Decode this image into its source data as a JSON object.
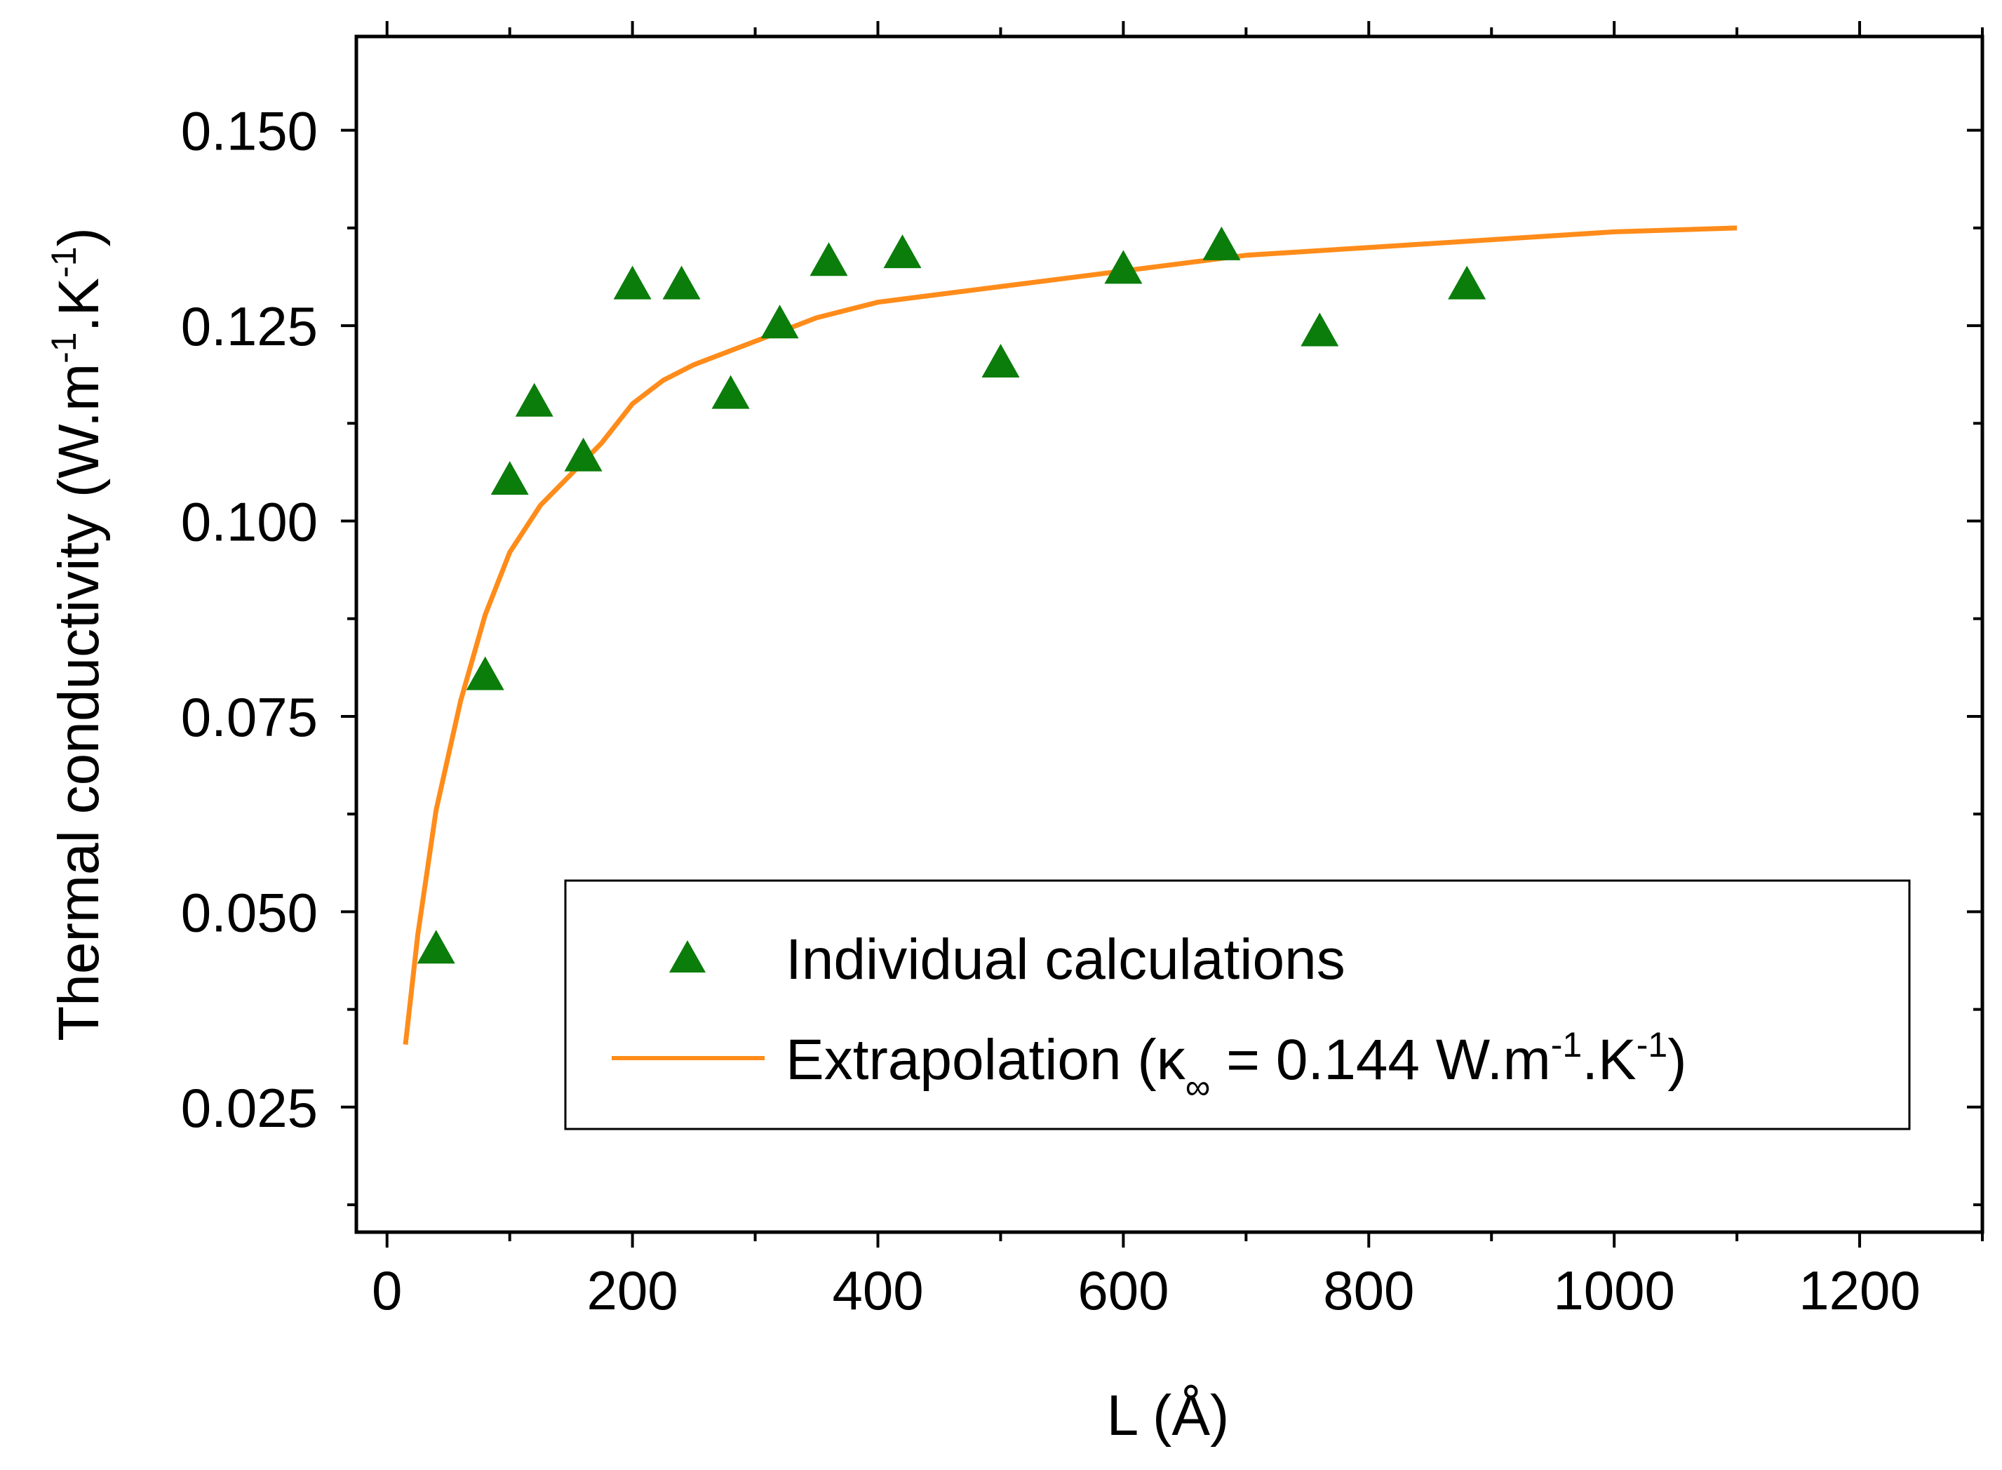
{
  "chart_data": {
    "type": "scatter",
    "xlabel": "L (Å)",
    "ylabel": {
      "main": "Thermal conductivity (W.m",
      "sup1": "-1",
      "mid": ".K",
      "sup2": "-1",
      "end": ")"
    },
    "xlim": [
      -25,
      1300
    ],
    "ylim": [
      0.009,
      0.162
    ],
    "x_ticks": [
      0,
      200,
      400,
      600,
      800,
      1000,
      1200
    ],
    "x_tick_labels": [
      "0",
      "200",
      "400",
      "600",
      "800",
      "1000",
      "1200"
    ],
    "y_ticks": [
      0.025,
      0.05,
      0.075,
      0.1,
      0.125,
      0.15
    ],
    "y_tick_labels": [
      "0.025",
      "0.050",
      "0.075",
      "0.100",
      "0.125",
      "0.150"
    ],
    "grid": false,
    "legend_position": "bottom-right",
    "series": [
      {
        "name": "Individual calculations",
        "kind": "scatter",
        "marker": "triangle",
        "color": "#0a7d0a",
        "points": [
          [
            40,
            0.045
          ],
          [
            80,
            0.08
          ],
          [
            100,
            0.105
          ],
          [
            120,
            0.115
          ],
          [
            160,
            0.108
          ],
          [
            200,
            0.13
          ],
          [
            240,
            0.13
          ],
          [
            280,
            0.116
          ],
          [
            320,
            0.125
          ],
          [
            360,
            0.133
          ],
          [
            420,
            0.134
          ],
          [
            500,
            0.12
          ],
          [
            600,
            0.132
          ],
          [
            680,
            0.135
          ],
          [
            760,
            0.124
          ],
          [
            880,
            0.13
          ]
        ]
      },
      {
        "name": "Extrapolation",
        "legend_label": {
          "prefix": "Extrapolation (κ",
          "sub": "∞",
          "value": " = 0.144 W.m",
          "sup1": "-1",
          "mid": ".K",
          "sup2": "-1",
          "end": ")"
        },
        "kind": "line",
        "color": "#ff8c1a",
        "kappa_inf": 0.144,
        "x_range": [
          15,
          1100
        ],
        "points": [
          [
            15,
            0.033
          ],
          [
            25,
            0.047
          ],
          [
            40,
            0.063
          ],
          [
            60,
            0.077
          ],
          [
            80,
            0.088
          ],
          [
            100,
            0.096
          ],
          [
            125,
            0.102
          ],
          [
            150,
            0.106
          ],
          [
            175,
            0.11
          ],
          [
            200,
            0.115
          ],
          [
            225,
            0.118
          ],
          [
            250,
            0.12
          ],
          [
            300,
            0.123
          ],
          [
            350,
            0.126
          ],
          [
            400,
            0.128
          ],
          [
            450,
            0.129
          ],
          [
            500,
            0.13
          ],
          [
            600,
            0.132
          ],
          [
            700,
            0.134
          ],
          [
            800,
            0.135
          ],
          [
            900,
            0.136
          ],
          [
            1000,
            0.137
          ],
          [
            1100,
            0.1375
          ]
        ]
      }
    ]
  }
}
